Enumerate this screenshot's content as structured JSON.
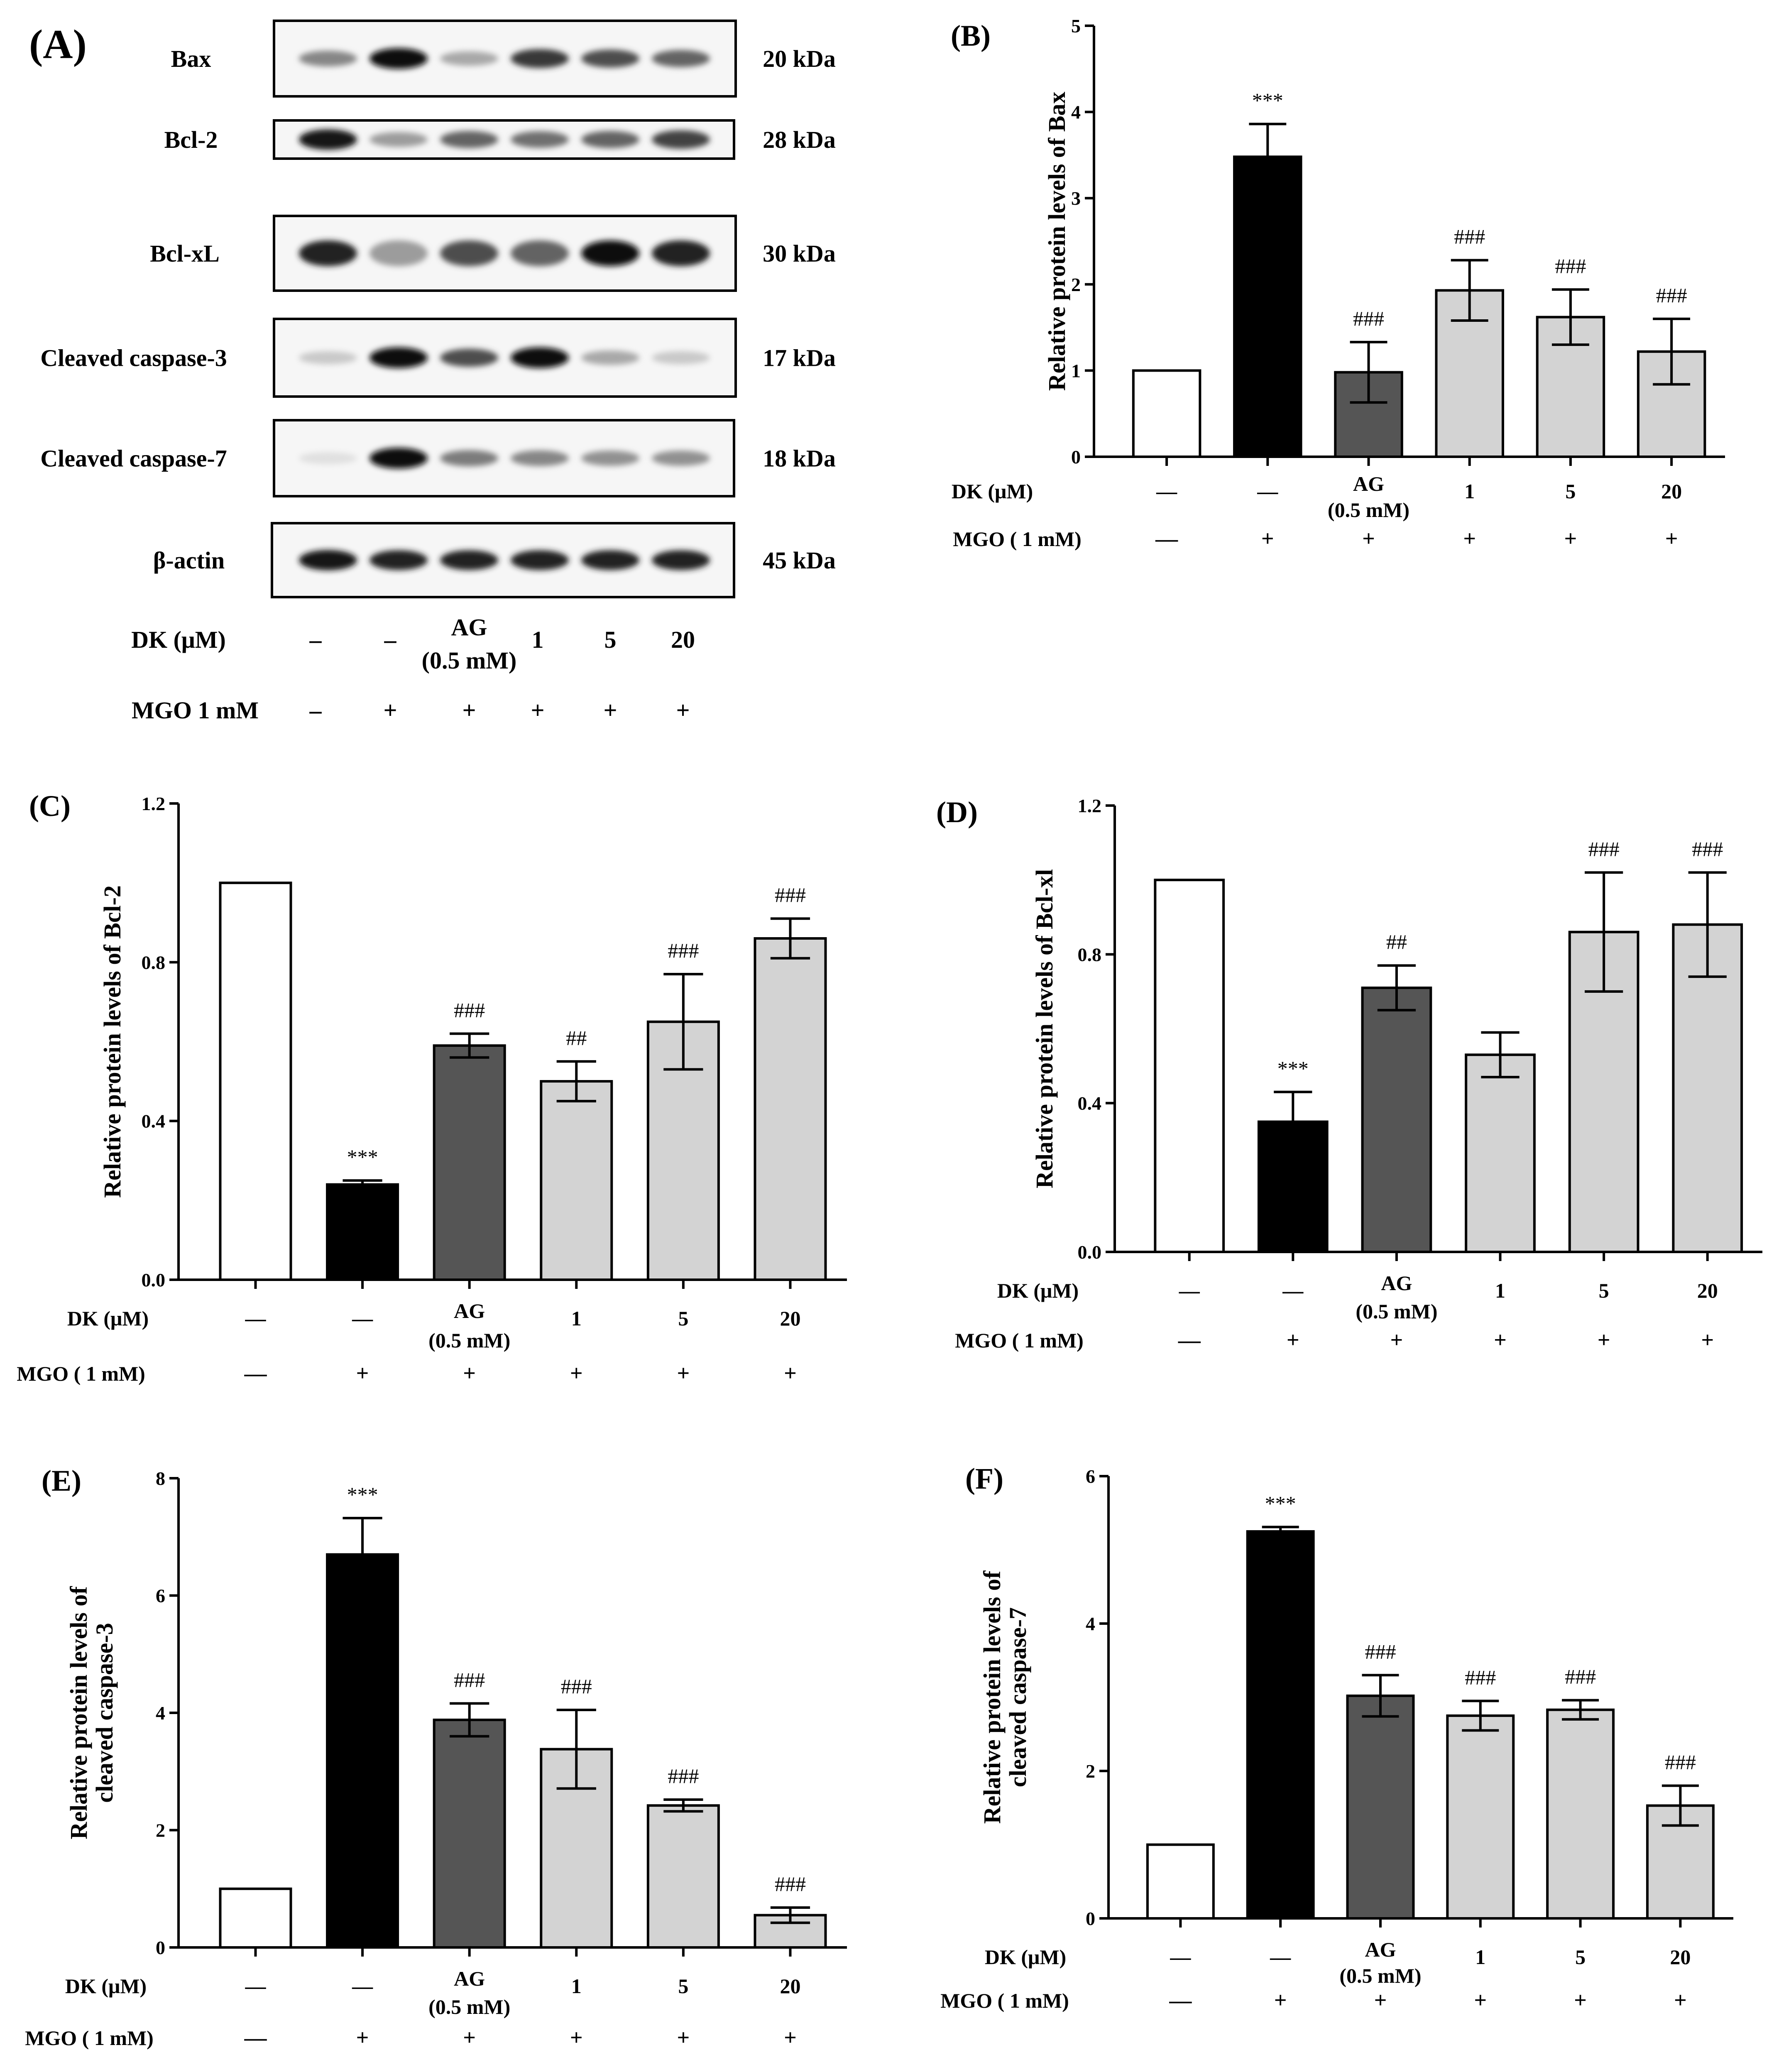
{
  "panelA": {
    "letter": "(A)",
    "rows": [
      {
        "label": "Bax",
        "size": "20 kDa"
      },
      {
        "label": "Bcl-2",
        "size": "28 kDa"
      },
      {
        "label": "Bcl-xL",
        "size": "30 kDa"
      },
      {
        "label": "Cleaved caspase-3",
        "size": "17 kDa"
      },
      {
        "label": "Cleaved caspase-7",
        "size": "18 kDa"
      },
      {
        "label": "β-actin",
        "size": "45 kDa"
      }
    ],
    "dk_label": "DK (μM)",
    "mgo_label": "MGO 1 mM",
    "dk_values": [
      "–",
      "–",
      "AG",
      "1",
      "5",
      "20"
    ],
    "ag_sub": "(0.5 mM)",
    "mgo_values": [
      "–",
      "+",
      "+",
      "+",
      "+",
      "+"
    ],
    "band_intensity": {
      "Bax": [
        0.45,
        1.0,
        0.3,
        0.8,
        0.7,
        0.6
      ],
      "Bcl-2": [
        0.95,
        0.35,
        0.6,
        0.55,
        0.6,
        0.75
      ],
      "Bcl-xL": [
        0.9,
        0.35,
        0.7,
        0.6,
        1.0,
        0.9
      ],
      "Cleaved caspase-3": [
        0.15,
        1.0,
        0.7,
        1.0,
        0.3,
        0.15
      ],
      "Cleaved caspase-7": [
        0.05,
        1.0,
        0.5,
        0.45,
        0.4,
        0.4
      ],
      "β-actin": [
        0.95,
        0.9,
        0.9,
        0.9,
        0.9,
        0.9
      ]
    }
  },
  "colors": {
    "ctrl": "#ffffff",
    "mgo": "#000000",
    "ag": "#555555",
    "dk": "#d3d3d3"
  },
  "chart_data": [
    {
      "letter": "(B)",
      "type": "bar",
      "ylabel": [
        "Relative protein levels of Bax"
      ],
      "ylim": [
        0,
        5
      ],
      "yticks": [
        "0",
        "1",
        "2",
        "3",
        "4",
        "5"
      ],
      "values": [
        1.0,
        3.48,
        0.98,
        1.93,
        1.62,
        1.22
      ],
      "errors": [
        0,
        0.38,
        0.35,
        0.35,
        0.32,
        0.38
      ],
      "annotations": [
        "",
        "***",
        "###",
        "###",
        "###",
        "###"
      ],
      "dk_label": "DK  (μM)",
      "mgo_label": "MGO ( 1 mM)",
      "dk_values": [
        "—",
        "—",
        "AG",
        "1",
        "5",
        "20"
      ],
      "ag_sub": "(0.5 mM)",
      "mgo_values": [
        "—",
        "+",
        "+",
        "+",
        "+",
        "+"
      ]
    },
    {
      "letter": "(C)",
      "type": "bar",
      "ylabel": [
        "Relative protein levels of Bcl-2"
      ],
      "ylim": [
        0,
        1.2
      ],
      "yticks": [
        "0.0",
        "0.4",
        "0.8",
        "1.2"
      ],
      "values": [
        1.0,
        0.24,
        0.59,
        0.5,
        0.65,
        0.86
      ],
      "errors": [
        0,
        0.01,
        0.03,
        0.05,
        0.12,
        0.05
      ],
      "annotations": [
        "",
        "***",
        "###",
        "##",
        "###",
        "###"
      ],
      "dk_label": "DK  (μM)",
      "mgo_label": "MGO ( 1 mM)",
      "dk_values": [
        "—",
        "—",
        "AG",
        "1",
        "5",
        "20"
      ],
      "ag_sub": "(0.5 mM)",
      "mgo_values": [
        "—",
        "+",
        "+",
        "+",
        "+",
        "+"
      ]
    },
    {
      "letter": "(D)",
      "type": "bar",
      "ylabel": [
        "Relative protein levels of Bcl-xl"
      ],
      "ylim": [
        0,
        1.2
      ],
      "yticks": [
        "0.0",
        "0.4",
        "0.8",
        "1.2"
      ],
      "values": [
        1.0,
        0.35,
        0.71,
        0.53,
        0.86,
        0.88
      ],
      "errors": [
        0,
        0.08,
        0.06,
        0.06,
        0.16,
        0.14
      ],
      "annotations": [
        "",
        "***",
        "##",
        "",
        "###",
        "###"
      ],
      "dk_label": "DK  (μM)",
      "mgo_label": "MGO ( 1 mM)",
      "dk_values": [
        "—",
        "—",
        "AG",
        "1",
        "5",
        "20"
      ],
      "ag_sub": "(0.5 mM)",
      "mgo_values": [
        "—",
        "+",
        "+",
        "+",
        "+",
        "+"
      ]
    },
    {
      "letter": "(E)",
      "type": "bar",
      "ylabel": [
        "Relative protein levels of",
        "cleaved caspase-3"
      ],
      "ylim": [
        0,
        8
      ],
      "yticks": [
        "0",
        "2",
        "4",
        "6",
        "8"
      ],
      "values": [
        1.0,
        6.7,
        3.88,
        3.38,
        2.42,
        0.55
      ],
      "errors": [
        0,
        0.62,
        0.28,
        0.67,
        0.1,
        0.13
      ],
      "annotations": [
        "",
        "***",
        "###",
        "###",
        "###",
        "###"
      ],
      "dk_label": "DK  (μM)",
      "mgo_label": "MGO ( 1 mM)",
      "dk_values": [
        "—",
        "—",
        "AG",
        "1",
        "5",
        "20"
      ],
      "ag_sub": "(0.5 mM)",
      "mgo_values": [
        "—",
        "+",
        "+",
        "+",
        "+",
        "+"
      ]
    },
    {
      "letter": "(F)",
      "type": "bar",
      "ylabel": [
        "Relative protein levels of",
        "cleaved caspase-7"
      ],
      "ylim": [
        0,
        6
      ],
      "yticks": [
        "0",
        "2",
        "4",
        "6"
      ],
      "values": [
        1.0,
        5.25,
        3.02,
        2.75,
        2.83,
        1.53
      ],
      "errors": [
        0,
        0.06,
        0.28,
        0.2,
        0.13,
        0.27
      ],
      "annotations": [
        "",
        "***",
        "###",
        "###",
        "###",
        "###"
      ],
      "dk_label": "DK  (μM)",
      "mgo_label": "MGO ( 1 mM)",
      "dk_values": [
        "—",
        "—",
        "AG",
        "1",
        "5",
        "20"
      ],
      "ag_sub": "(0.5 mM)",
      "mgo_values": [
        "—",
        "+",
        "+",
        "+",
        "+",
        "+"
      ]
    }
  ]
}
